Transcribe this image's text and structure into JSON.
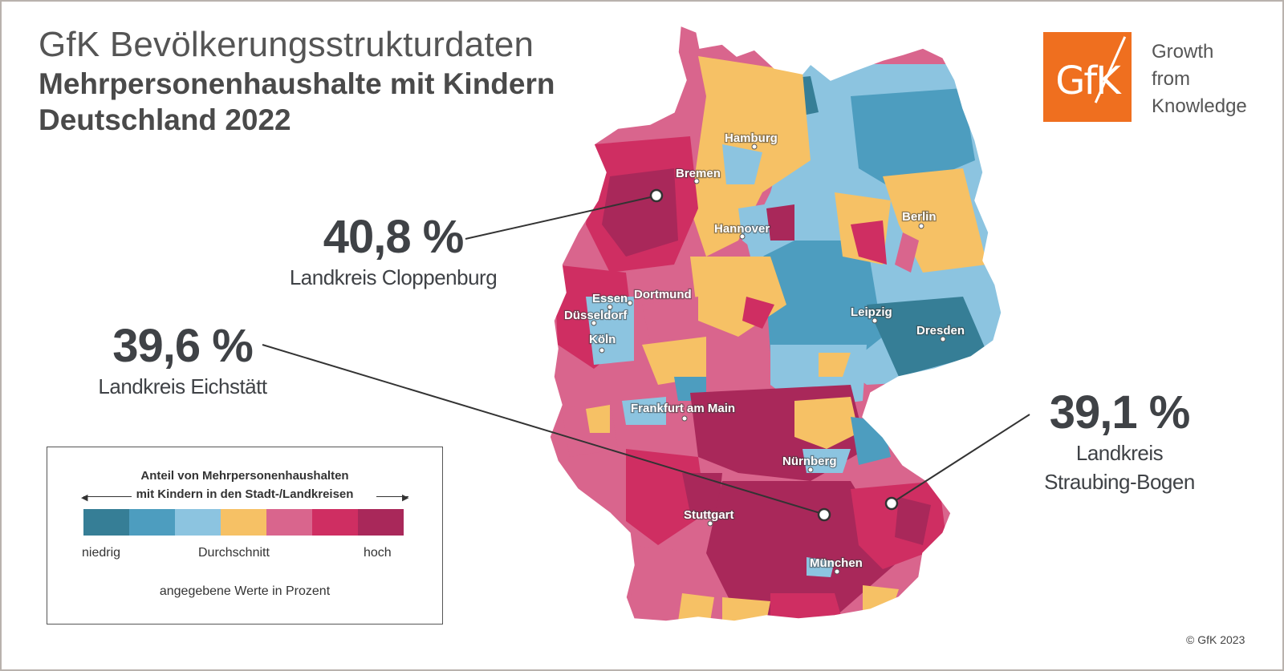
{
  "title": {
    "line1": "GfK Bevölkerungsstrukturdaten",
    "line2": "Mehrpersonenhaushalte mit Kindern",
    "line3": "Deutschland 2022"
  },
  "logo": {
    "text": "GfK",
    "tagline": [
      "Growth",
      "from",
      "Knowledge"
    ]
  },
  "callouts": [
    {
      "value": "40,8 %",
      "label": [
        "Landkreis Cloppenburg"
      ]
    },
    {
      "value": "39,6 %",
      "label": [
        "Landkreis Eichstätt"
      ]
    },
    {
      "value": "39,1 %",
      "label": [
        "Landkreis",
        "Straubing-Bogen"
      ]
    }
  ],
  "cities": [
    "Hamburg",
    "Bremen",
    "Berlin",
    "Hannover",
    "Essen",
    "Dortmund",
    "Düsseldorf",
    "Köln",
    "Leipzig",
    "Dresden",
    "Frankfurt am Main",
    "Nürnberg",
    "Stuttgart",
    "München"
  ],
  "legend": {
    "title_line1": "Anteil von Mehrpersonenhaushalten",
    "title_line2": "mit Kindern in den Stadt-/Landkreisen",
    "colors": [
      "#367e96",
      "#4d9dbf",
      "#8cc4e0",
      "#f6c165",
      "#d9658d",
      "#cf2e62",
      "#a9285a"
    ],
    "low_label": "niedrig",
    "mid_label": "Durchschnitt",
    "high_label": "hoch",
    "note": "angegebene Werte in Prozent"
  },
  "copyright": "© GfK 2023"
}
